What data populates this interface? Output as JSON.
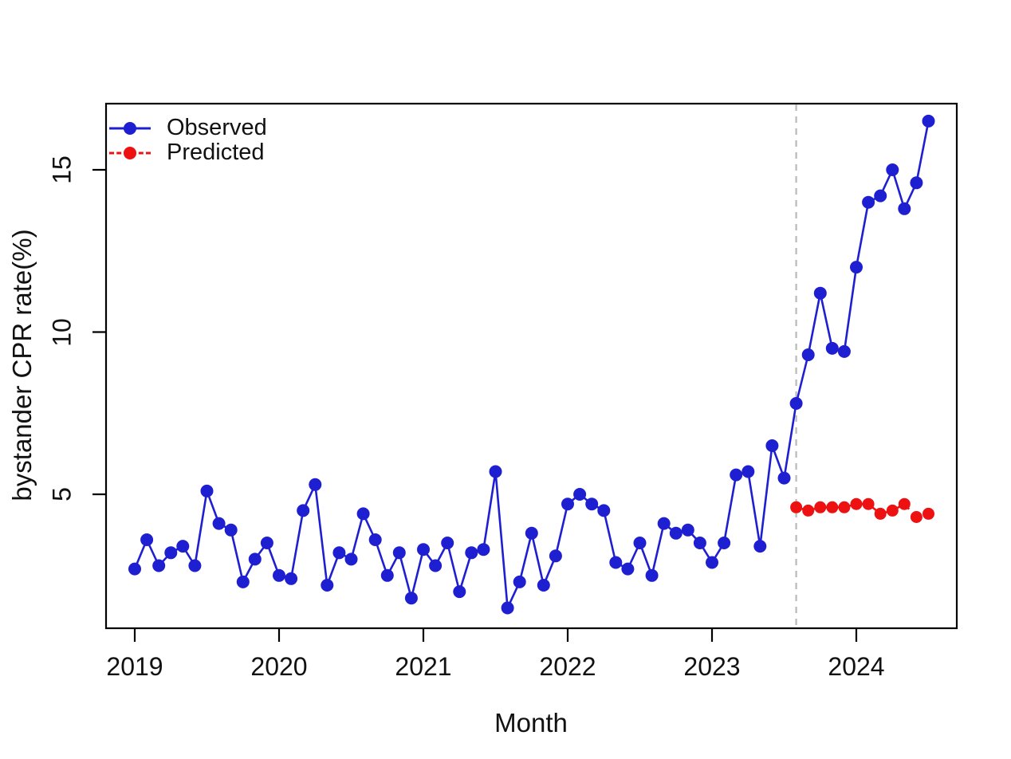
{
  "chart_data": {
    "type": "line",
    "title": "",
    "xlabel": "Month",
    "ylabel": "bystander CPR rate(%)",
    "x_tick_labels": [
      "2019",
      "2020",
      "2021",
      "2022",
      "2023",
      "2024"
    ],
    "y_tick_labels": [
      "5",
      "10",
      "15"
    ],
    "y_ticks": [
      5,
      10,
      15
    ],
    "ylim": [
      0.9,
      17.0
    ],
    "x_start_month": "2019-01",
    "x_end_month": "2024-07",
    "grid": "off",
    "legend_position": "top-left",
    "intervention_month": "2023-08",
    "intervention_month_index": 55,
    "colors": {
      "observed": "#1f1fd2",
      "predicted": "#ee1111",
      "intervention_line": "#b9b9b9",
      "axis": "#000000"
    },
    "legend": [
      {
        "label": "Observed",
        "color": "#1f1fd2",
        "line_style": "solid"
      },
      {
        "label": "Predicted",
        "color": "#ee1111",
        "line_style": "dashed"
      }
    ],
    "series": [
      {
        "name": "Observed",
        "color": "#1f1fd2",
        "line_style": "solid",
        "start_month_index": 0,
        "values": [
          2.7,
          3.6,
          2.8,
          3.2,
          3.4,
          2.8,
          5.1,
          4.1,
          3.9,
          2.3,
          3.0,
          3.5,
          2.5,
          2.4,
          4.5,
          5.3,
          2.2,
          3.2,
          3.0,
          4.4,
          3.6,
          2.5,
          3.2,
          1.8,
          3.3,
          2.8,
          3.5,
          2.0,
          3.2,
          3.3,
          5.7,
          1.5,
          2.3,
          3.8,
          2.2,
          3.1,
          4.7,
          5.0,
          4.7,
          4.5,
          2.9,
          2.7,
          3.5,
          2.5,
          4.1,
          3.8,
          3.9,
          3.5,
          2.9,
          3.5,
          5.6,
          5.7,
          3.4,
          6.5,
          5.5,
          7.8,
          9.3,
          11.2,
          9.5,
          9.4,
          12.0,
          14.0,
          14.2,
          15.0,
          13.8,
          14.6,
          16.5
        ]
      },
      {
        "name": "Predicted",
        "color": "#ee1111",
        "line_style": "dashed",
        "start_month_index": 55,
        "values": [
          4.6,
          4.5,
          4.6,
          4.6,
          4.6,
          4.7,
          4.7,
          4.4,
          4.5,
          4.7,
          4.3,
          4.4
        ]
      }
    ]
  }
}
